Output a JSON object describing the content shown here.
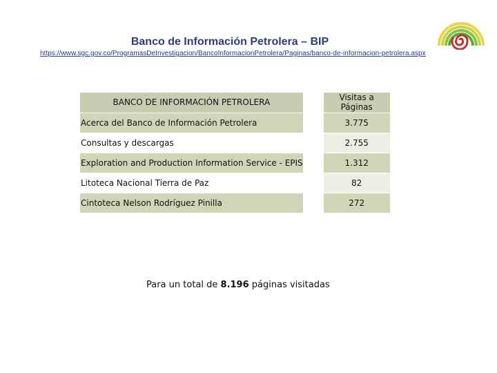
{
  "slide": {
    "title": "Banco de Información Petrolera – BIP",
    "url": "https://www.sgc.gov.co/ProgramasDeInvestigacion/BancoInformacionPetrolera/Paginas/banco-de-informacion-petrolera.aspx"
  },
  "table": {
    "headers": [
      "BANCO DE INFORMACIÓN PETROLERA",
      "Visitas a Páginas"
    ],
    "rows": [
      {
        "name": "Acerca del Banco de Información Petrolera",
        "visits": "3.775"
      },
      {
        "name": "Consultas y descargas",
        "visits": "2.755"
      },
      {
        "name": "Exploration and Production Information Service - EPIS",
        "visits": "1.312"
      },
      {
        "name": "Litoteca Nacional Tierra de Paz",
        "visits": "82"
      },
      {
        "name": "Cintoteca Nelson Rodríguez Pinilla",
        "visits": "272"
      }
    ]
  },
  "total": {
    "prefix": "Para un total de ",
    "value": "8.196",
    "suffix": " páginas visitadas"
  },
  "logo": {
    "icon": "rainbow-spiral-logo-icon",
    "colors": [
      "#f0d24a",
      "#a9c94a",
      "#6fb63f",
      "#c8302e"
    ]
  }
}
